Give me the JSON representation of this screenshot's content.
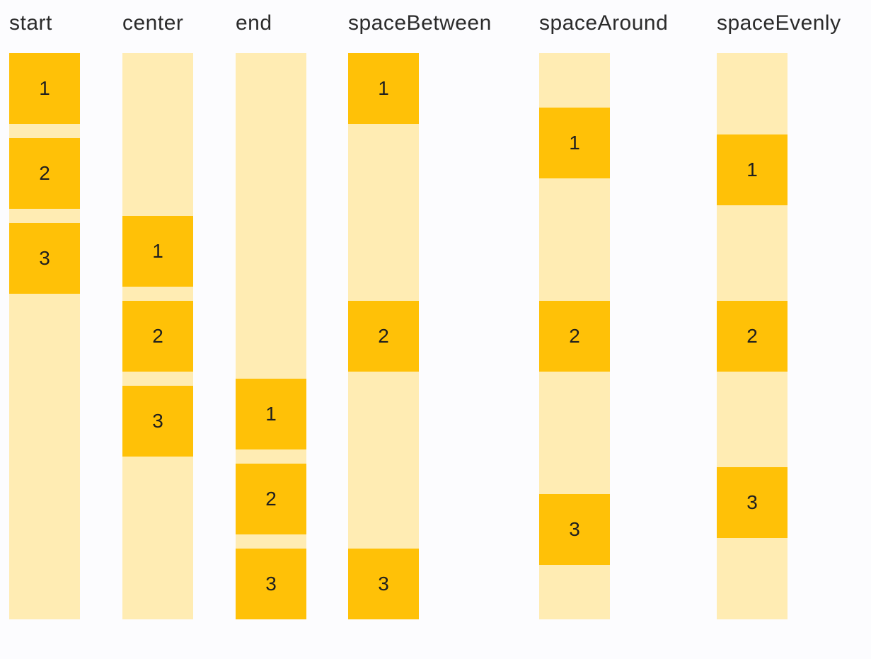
{
  "colors": {
    "background": "#FCFCFE",
    "track": "#FFECB3",
    "box": "#FFC107",
    "label-text": "#2B2B2B",
    "number-text": "#1F1F1F"
  },
  "columns": [
    {
      "label": "start",
      "alignment": "flex-start",
      "boxes": [
        "1",
        "2",
        "3"
      ]
    },
    {
      "label": "center",
      "alignment": "center",
      "boxes": [
        "1",
        "2",
        "3"
      ]
    },
    {
      "label": "end",
      "alignment": "flex-end",
      "boxes": [
        "1",
        "2",
        "3"
      ]
    },
    {
      "label": "spaceBetween",
      "alignment": "space-between",
      "boxes": [
        "1",
        "2",
        "3"
      ]
    },
    {
      "label": "spaceAround",
      "alignment": "space-around",
      "boxes": [
        "1",
        "2",
        "3"
      ]
    },
    {
      "label": "spaceEvenly",
      "alignment": "space-evenly",
      "boxes": [
        "1",
        "2",
        "3"
      ]
    }
  ]
}
